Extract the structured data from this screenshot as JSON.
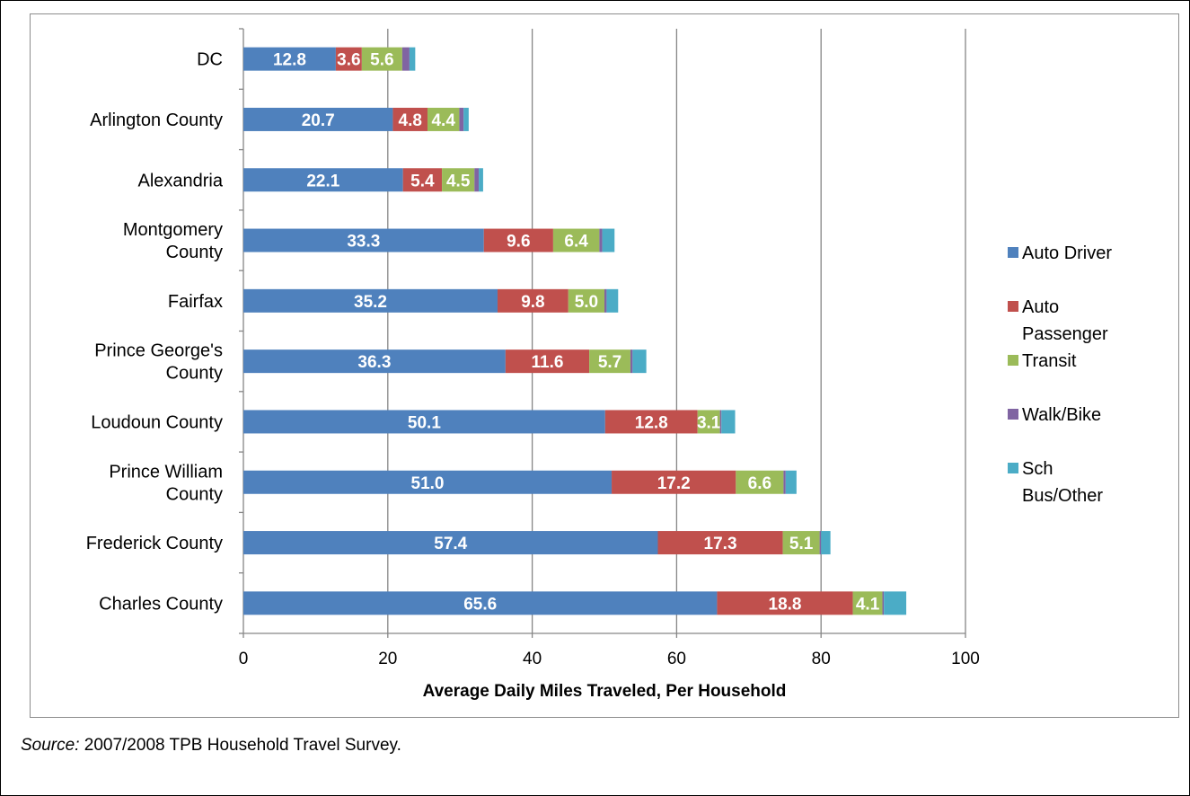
{
  "chart_data": {
    "type": "bar",
    "orientation": "horizontal",
    "stacked": true,
    "categories": [
      "DC",
      "Arlington County",
      "Alexandria",
      "Montgomery County",
      "Fairfax",
      "Prince George's County",
      "Loudoun County",
      "Prince William County",
      "Frederick County",
      "Charles County"
    ],
    "category_lines": [
      [
        "DC"
      ],
      [
        "Arlington County"
      ],
      [
        "Alexandria"
      ],
      [
        "Montgomery",
        "County"
      ],
      [
        "Fairfax"
      ],
      [
        "Prince George's",
        "County"
      ],
      [
        "Loudoun County"
      ],
      [
        "Prince William",
        "County"
      ],
      [
        "Frederick County"
      ],
      [
        "Charles County"
      ]
    ],
    "series": [
      {
        "name": "Auto Driver",
        "color": "#4f81bd",
        "values": [
          12.8,
          20.7,
          22.1,
          33.3,
          35.2,
          36.3,
          50.1,
          51.0,
          57.4,
          65.6
        ],
        "labels": [
          "12.8",
          "20.7",
          "22.1",
          "33.3",
          "35.2",
          "36.3",
          "50.1",
          "51.0",
          "57.4",
          "65.6"
        ]
      },
      {
        "name": "Auto Passenger",
        "color": "#c0504d",
        "values": [
          3.6,
          4.8,
          5.4,
          9.6,
          9.8,
          11.6,
          12.8,
          17.2,
          17.3,
          18.8
        ],
        "labels": [
          "3.6",
          "4.8",
          "5.4",
          "9.6",
          "9.8",
          "11.6",
          "12.8",
          "17.2",
          "17.3",
          "18.8"
        ]
      },
      {
        "name": "Transit",
        "color": "#9bbb59",
        "values": [
          5.6,
          4.4,
          4.5,
          6.4,
          5.0,
          5.7,
          3.1,
          6.6,
          5.1,
          4.1
        ],
        "labels": [
          "5.6",
          "4.4",
          "4.5",
          "6.4",
          "5.0",
          "5.7",
          "3.1",
          "6.6",
          "5.1",
          "4.1"
        ]
      },
      {
        "name": "Walk/Bike",
        "color": "#8064a2",
        "values": [
          1.0,
          0.6,
          0.6,
          0.4,
          0.3,
          0.3,
          0.2,
          0.3,
          0.2,
          0.2
        ],
        "labels": []
      },
      {
        "name": "Sch Bus/Other",
        "color": "#4bacc6",
        "values": [
          0.8,
          0.7,
          0.6,
          1.7,
          1.6,
          1.9,
          1.9,
          1.5,
          1.3,
          3.1
        ],
        "labels": []
      }
    ],
    "legend_lines": [
      [
        "Auto Driver"
      ],
      [
        "Auto",
        "Passenger"
      ],
      [
        "Transit"
      ],
      [
        "Walk/Bike"
      ],
      [
        "Sch",
        "Bus/Other"
      ]
    ],
    "xlabel": "Average Daily Miles Traveled, Per Household",
    "xlim": [
      0,
      100
    ],
    "xticks": [
      0,
      20,
      40,
      60,
      80,
      100
    ],
    "xtick_labels": [
      "0",
      "20",
      "40",
      "60",
      "80",
      "100"
    ],
    "grid": "vertical",
    "legend_position": "right"
  },
  "source": {
    "label": "Source:",
    "text": " 2007/2008 TPB Household Travel Survey."
  }
}
